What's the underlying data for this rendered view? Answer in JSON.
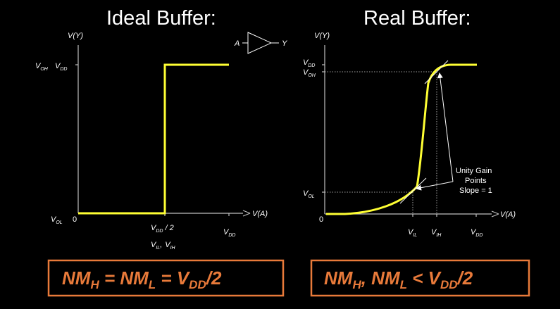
{
  "titles": {
    "left": "Ideal Buffer:",
    "right": "Real Buffer:"
  },
  "buffer_symbol": {
    "input": "A",
    "output": "Y"
  },
  "left_plot": {
    "y_axis": {
      "v": "V",
      "paren": "(Y)"
    },
    "x_axis": {
      "v": "V",
      "paren": "(A)"
    },
    "y_labels": {
      "voh": "V",
      "voh_sub": "OH",
      "vdd": "V",
      "vdd_sub": "DD",
      "vol": "V",
      "vol_sub": "OL",
      "zero": "0"
    },
    "x_labels": {
      "vdd_half": "V",
      "vdd_half_sub": "DD",
      "vdd_half_suffix": " / 2",
      "vil": "V",
      "vil_sub": "IL",
      "comma": ",",
      "vih": "V",
      "vih_sub": "IH",
      "vdd": "V",
      "vdd_sub": "DD"
    }
  },
  "right_plot": {
    "y_axis": {
      "v": "V",
      "paren": "(Y)"
    },
    "x_axis": {
      "v": "V",
      "paren": "(A)"
    },
    "y_labels": {
      "vdd": "V",
      "vdd_sub": "DD",
      "voh": "V",
      "voh_sub": "OH",
      "vol": "V",
      "vol_sub": "OL",
      "zero": "0"
    },
    "x_labels": {
      "vil": "V",
      "vil_sub": "IL",
      "vih": "V",
      "vih_sub": "IH",
      "vdd": "V",
      "vdd_sub": "DD"
    },
    "annotation": {
      "line1": "Unity Gain",
      "line2": "Points",
      "line3": "Slope = 1"
    }
  },
  "formulas": {
    "left": {
      "nm": "NM",
      "h": "H",
      "eq1": " = NM",
      "l": "L",
      "eq2": " = V",
      "dd": "DD",
      "tail": "/2"
    },
    "right": {
      "nm": "NM",
      "h": "H",
      "mid": ", NM",
      "l": "L",
      "lt": " < V",
      "dd": "DD",
      "tail": "/2"
    }
  },
  "colors": {
    "curve": "#ffff33",
    "accent": "#e87a3a",
    "background": "#000000",
    "text": "#ffffff"
  }
}
